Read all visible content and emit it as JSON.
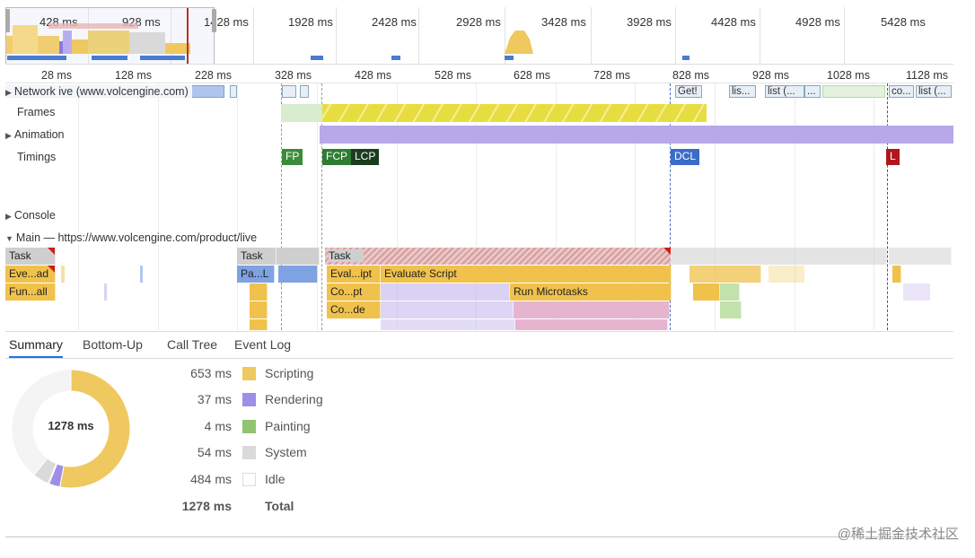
{
  "overview": {
    "tick_labels": [
      "428 ms",
      "928 ms",
      "1428 ms",
      "1928 ms",
      "2428 ms",
      "2928 ms",
      "3428 ms",
      "3928 ms",
      "4428 ms",
      "4928 ms",
      "5428 ms"
    ]
  },
  "ruler": {
    "labels": [
      "28 ms",
      "128 ms",
      "228 ms",
      "328 ms",
      "428 ms",
      "528 ms",
      "628 ms",
      "728 ms",
      "828 ms",
      "928 ms",
      "1028 ms",
      "1128 ms"
    ]
  },
  "tracks": {
    "network_label": "Network ive (www.volcengine.com)",
    "frames_label": "Frames",
    "animation_label": "Animation",
    "timings_label": "Timings",
    "console_label": "Console",
    "main_label": "Main — https://www.volcengine.com/product/live",
    "network_requests": [
      "Get!",
      "lis...",
      "list (...",
      "...",
      "co...",
      "list (..."
    ],
    "timings": {
      "fp": "FP",
      "fcp": "FCP",
      "lcp": "LCP",
      "dcl": "DCL",
      "l": "L"
    },
    "flame": {
      "task1": "Task",
      "task2": "Task",
      "task3": "Task",
      "eve_ad": "Eve...ad",
      "fun_all": "Fun...all",
      "pa_l": "Pa...L",
      "eval_ipt": "Eval...ipt",
      "evaluate_script": "Evaluate Script",
      "co_pt": "Co...pt",
      "run_microtasks": "Run Microtasks",
      "co_de": "Co...de"
    }
  },
  "tabs": [
    "Summary",
    "Bottom-Up",
    "Call Tree",
    "Event Log"
  ],
  "active_tab": "Summary",
  "summary": {
    "total_center": "1278 ms",
    "rows": [
      {
        "value": "653 ms",
        "name": "Scripting",
        "color": "#f0c860"
      },
      {
        "value": "37 ms",
        "name": "Rendering",
        "color": "#9e8ee6"
      },
      {
        "value": "4 ms",
        "name": "Painting",
        "color": "#8fc471"
      },
      {
        "value": "54 ms",
        "name": "System",
        "color": "#dadada"
      },
      {
        "value": "484 ms",
        "name": "Idle",
        "color": "#ffffff"
      }
    ],
    "total_value": "1278 ms",
    "total_name": "Total"
  },
  "watermark": "@稀土掘金技术社区"
}
